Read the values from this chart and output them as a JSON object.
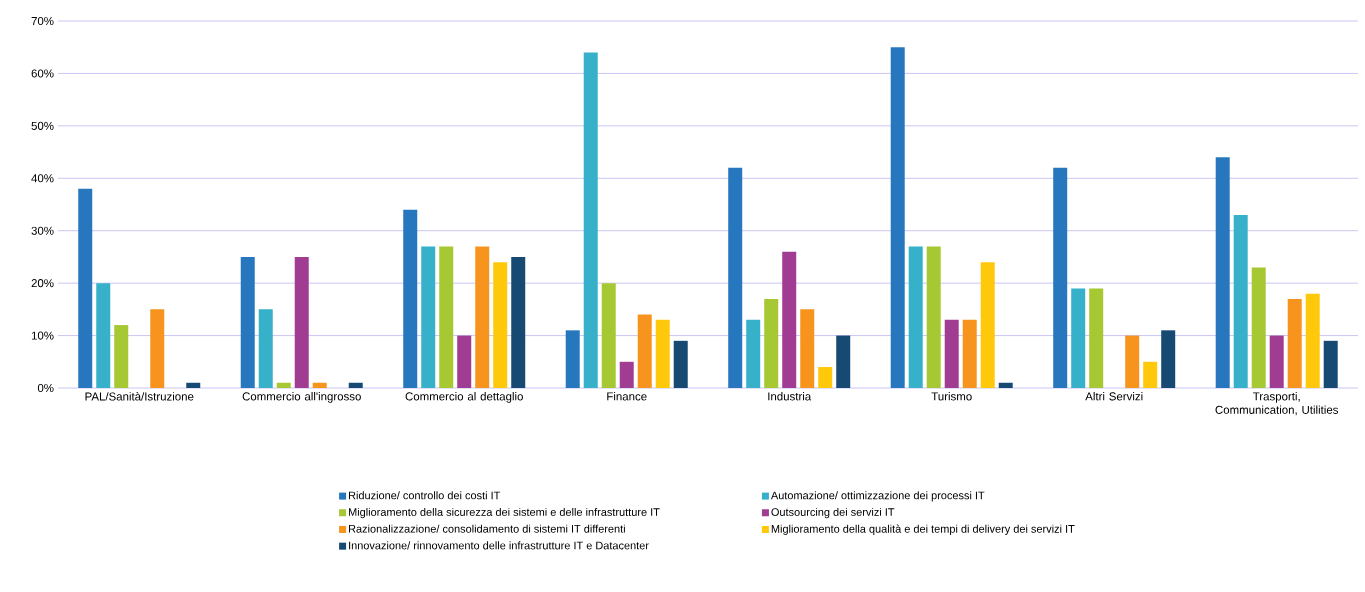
{
  "chart_data": {
    "type": "bar",
    "categories": [
      "PAL/Sanità/Istruzione",
      "Commercio all'ingrosso",
      "Commercio al dettaglio",
      "Finance",
      "Industria",
      "Turismo",
      "Altri Servizi",
      "Trasporti, Communication, Utilities"
    ],
    "series": [
      {
        "name": "Riduzione/ controllo dei costi IT",
        "color": "#2677bd",
        "values": [
          38,
          25,
          34,
          11,
          42,
          65,
          42,
          44
        ]
      },
      {
        "name": "Automazione/ ottimizzazione dei processi IT",
        "color": "#37b0c9",
        "values": [
          20,
          15,
          27,
          64,
          13,
          27,
          19,
          33
        ]
      },
      {
        "name": "Miglioramento della sicurezza dei sistemi e delle infrastrutture IT",
        "color": "#a6c832",
        "values": [
          12,
          1,
          27,
          20,
          17,
          27,
          19,
          23
        ]
      },
      {
        "name": "Outsourcing dei servizi IT",
        "color": "#a03c92",
        "values": [
          null,
          25,
          10,
          5,
          26,
          13,
          null,
          10
        ]
      },
      {
        "name": "Razionalizzazione/ consolidamento di sistemi IT differenti",
        "color": "#f7941e",
        "values": [
          15,
          1,
          27,
          14,
          15,
          13,
          10,
          17
        ]
      },
      {
        "name": "Miglioramento della qualità e dei tempi di delivery dei servizi IT",
        "color": "#ffc80a",
        "values": [
          null,
          null,
          24,
          13,
          4,
          24,
          5,
          18
        ]
      },
      {
        "name": "Innovazione/ rinnovamento delle infrastrutture IT e Datacenter",
        "color": "#164a73",
        "values": [
          1,
          1,
          25,
          9,
          10,
          1,
          11,
          9
        ]
      }
    ],
    "ylim": [
      0,
      70
    ],
    "yticks": [
      {
        "value": 0,
        "label": "0%"
      },
      {
        "value": 10,
        "label": "10%"
      },
      {
        "value": 20,
        "label": "20%"
      },
      {
        "value": 30,
        "label": "30%"
      },
      {
        "value": 40,
        "label": "40%"
      },
      {
        "value": 50,
        "label": "50%"
      },
      {
        "value": 60,
        "label": "60%"
      },
      {
        "value": 70,
        "label": "70%"
      }
    ],
    "grid": "y",
    "legend": "bottom"
  }
}
